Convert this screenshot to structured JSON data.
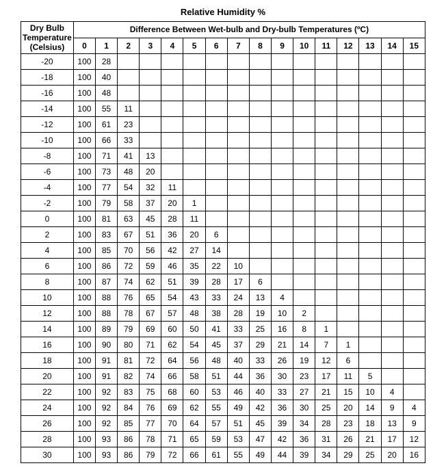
{
  "title": "Relative Humidity %",
  "rowHeaderLabel": "Dry Bulb\nTemperature\n(Celsius)",
  "colGroupLabel": "Difference Between Wet-bulb and Dry-bulb Temperatures (ºC)",
  "columns": [
    "0",
    "1",
    "2",
    "3",
    "4",
    "5",
    "6",
    "7",
    "8",
    "9",
    "10",
    "11",
    "12",
    "13",
    "14",
    "15"
  ],
  "rows": [
    {
      "t": "-20",
      "v": [
        "100",
        "28",
        "",
        "",
        "",
        "",
        "",
        "",
        "",
        "",
        "",
        "",
        "",
        "",
        "",
        ""
      ]
    },
    {
      "t": "-18",
      "v": [
        "100",
        "40",
        "",
        "",
        "",
        "",
        "",
        "",
        "",
        "",
        "",
        "",
        "",
        "",
        "",
        ""
      ]
    },
    {
      "t": "-16",
      "v": [
        "100",
        "48",
        "",
        "",
        "",
        "",
        "",
        "",
        "",
        "",
        "",
        "",
        "",
        "",
        "",
        ""
      ]
    },
    {
      "t": "-14",
      "v": [
        "100",
        "55",
        "11",
        "",
        "",
        "",
        "",
        "",
        "",
        "",
        "",
        "",
        "",
        "",
        "",
        ""
      ]
    },
    {
      "t": "-12",
      "v": [
        "100",
        "61",
        "23",
        "",
        "",
        "",
        "",
        "",
        "",
        "",
        "",
        "",
        "",
        "",
        "",
        ""
      ]
    },
    {
      "t": "-10",
      "v": [
        "100",
        "66",
        "33",
        "",
        "",
        "",
        "",
        "",
        "",
        "",
        "",
        "",
        "",
        "",
        "",
        ""
      ]
    },
    {
      "t": "-8",
      "v": [
        "100",
        "71",
        "41",
        "13",
        "",
        "",
        "",
        "",
        "",
        "",
        "",
        "",
        "",
        "",
        "",
        ""
      ]
    },
    {
      "t": "-6",
      "v": [
        "100",
        "73",
        "48",
        "20",
        "",
        "",
        "",
        "",
        "",
        "",
        "",
        "",
        "",
        "",
        "",
        ""
      ]
    },
    {
      "t": "-4",
      "v": [
        "100",
        "77",
        "54",
        "32",
        "11",
        "",
        "",
        "",
        "",
        "",
        "",
        "",
        "",
        "",
        "",
        ""
      ]
    },
    {
      "t": "-2",
      "v": [
        "100",
        "79",
        "58",
        "37",
        "20",
        "1",
        "",
        "",
        "",
        "",
        "",
        "",
        "",
        "",
        "",
        ""
      ]
    },
    {
      "t": "0",
      "v": [
        "100",
        "81",
        "63",
        "45",
        "28",
        "11",
        "",
        "",
        "",
        "",
        "",
        "",
        "",
        "",
        "",
        ""
      ]
    },
    {
      "t": "2",
      "v": [
        "100",
        "83",
        "67",
        "51",
        "36",
        "20",
        "6",
        "",
        "",
        "",
        "",
        "",
        "",
        "",
        "",
        ""
      ]
    },
    {
      "t": "4",
      "v": [
        "100",
        "85",
        "70",
        "56",
        "42",
        "27",
        "14",
        "",
        "",
        "",
        "",
        "",
        "",
        "",
        "",
        ""
      ]
    },
    {
      "t": "6",
      "v": [
        "100",
        "86",
        "72",
        "59",
        "46",
        "35",
        "22",
        "10",
        "",
        "",
        "",
        "",
        "",
        "",
        "",
        ""
      ]
    },
    {
      "t": "8",
      "v": [
        "100",
        "87",
        "74",
        "62",
        "51",
        "39",
        "28",
        "17",
        "6",
        "",
        "",
        "",
        "",
        "",
        "",
        ""
      ]
    },
    {
      "t": "10",
      "v": [
        "100",
        "88",
        "76",
        "65",
        "54",
        "43",
        "33",
        "24",
        "13",
        "4",
        "",
        "",
        "",
        "",
        "",
        ""
      ]
    },
    {
      "t": "12",
      "v": [
        "100",
        "88",
        "78",
        "67",
        "57",
        "48",
        "38",
        "28",
        "19",
        "10",
        "2",
        "",
        "",
        "",
        "",
        ""
      ]
    },
    {
      "t": "14",
      "v": [
        "100",
        "89",
        "79",
        "69",
        "60",
        "50",
        "41",
        "33",
        "25",
        "16",
        "8",
        "1",
        "",
        "",
        "",
        ""
      ]
    },
    {
      "t": "16",
      "v": [
        "100",
        "90",
        "80",
        "71",
        "62",
        "54",
        "45",
        "37",
        "29",
        "21",
        "14",
        "7",
        "1",
        "",
        "",
        ""
      ]
    },
    {
      "t": "18",
      "v": [
        "100",
        "91",
        "81",
        "72",
        "64",
        "56",
        "48",
        "40",
        "33",
        "26",
        "19",
        "12",
        "6",
        "",
        "",
        ""
      ]
    },
    {
      "t": "20",
      "v": [
        "100",
        "91",
        "82",
        "74",
        "66",
        "58",
        "51",
        "44",
        "36",
        "30",
        "23",
        "17",
        "11",
        "5",
        "",
        ""
      ]
    },
    {
      "t": "22",
      "v": [
        "100",
        "92",
        "83",
        "75",
        "68",
        "60",
        "53",
        "46",
        "40",
        "33",
        "27",
        "21",
        "15",
        "10",
        "4",
        ""
      ]
    },
    {
      "t": "24",
      "v": [
        "100",
        "92",
        "84",
        "76",
        "69",
        "62",
        "55",
        "49",
        "42",
        "36",
        "30",
        "25",
        "20",
        "14",
        "9",
        "4"
      ]
    },
    {
      "t": "26",
      "v": [
        "100",
        "92",
        "85",
        "77",
        "70",
        "64",
        "57",
        "51",
        "45",
        "39",
        "34",
        "28",
        "23",
        "18",
        "13",
        "9"
      ]
    },
    {
      "t": "28",
      "v": [
        "100",
        "93",
        "86",
        "78",
        "71",
        "65",
        "59",
        "53",
        "47",
        "42",
        "36",
        "31",
        "26",
        "21",
        "17",
        "12"
      ]
    },
    {
      "t": "30",
      "v": [
        "100",
        "93",
        "86",
        "79",
        "72",
        "66",
        "61",
        "55",
        "49",
        "44",
        "39",
        "34",
        "29",
        "25",
        "20",
        "16"
      ]
    }
  ],
  "style": {
    "type": "table",
    "background_color": "#ffffff",
    "border_color": "#000000",
    "text_color": "#000000",
    "font_family": "Arial",
    "header_fontsize": 12,
    "cell_fontsize": 12,
    "title_fontsize": 13,
    "row_header_width_pct": 13,
    "data_col_width_pct": 5.4375
  }
}
